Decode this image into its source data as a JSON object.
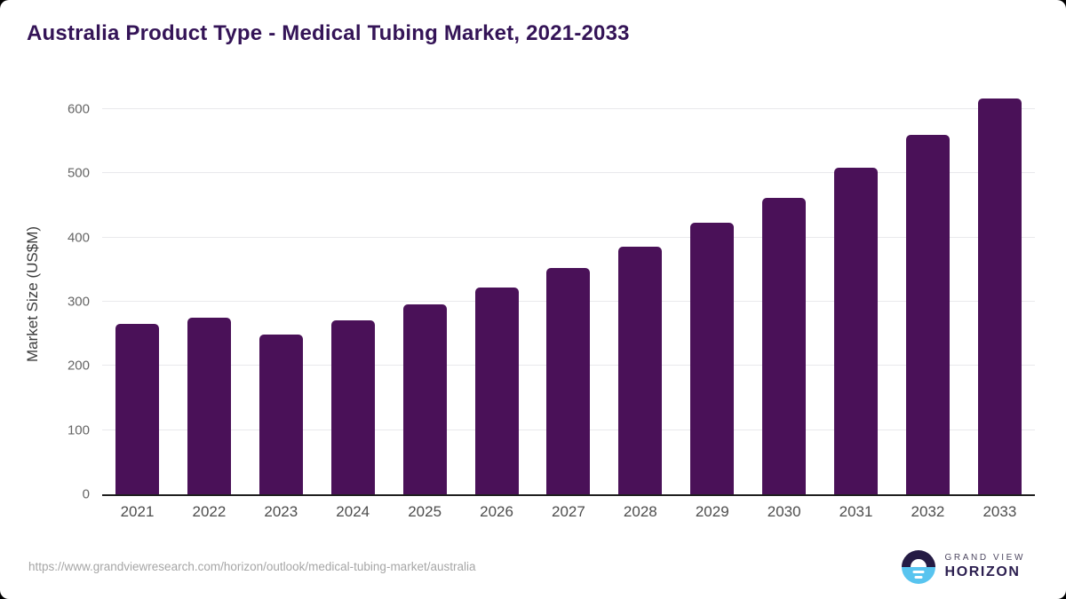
{
  "header": {
    "title": "Australia Product Type - Medical Tubing Market, 2021-2033"
  },
  "chart_data": {
    "type": "bar",
    "title": "Australia Product Type - Medical Tubing Market, 2021-2033",
    "categories": [
      "2021",
      "2022",
      "2023",
      "2024",
      "2025",
      "2026",
      "2027",
      "2028",
      "2029",
      "2030",
      "2031",
      "2032",
      "2033"
    ],
    "values": [
      266,
      275,
      249,
      271,
      296,
      322,
      352,
      386,
      423,
      462,
      509,
      560,
      617
    ],
    "xlabel": "",
    "ylabel": "Market Size (US$M)",
    "ylim": [
      0,
      625
    ],
    "yticks": [
      0,
      100,
      200,
      300,
      400,
      500,
      600
    ],
    "grid": true,
    "legend": "none",
    "bar_color": "#4a1158",
    "gridline_color": "#e9e9ec",
    "axis_line_color": "#1f1f1f",
    "title_color": "#341457"
  },
  "footer": {
    "source_url": "https://www.grandviewresearch.com/horizon/outlook/medical-tubing-market/australia",
    "logo": {
      "brand_top": "GRAND VIEW",
      "brand_bottom": "HORIZON",
      "icon": "horizon-sun-icon",
      "icon_top_color": "#251b44",
      "icon_bottom_color": "#58c4ef"
    }
  }
}
